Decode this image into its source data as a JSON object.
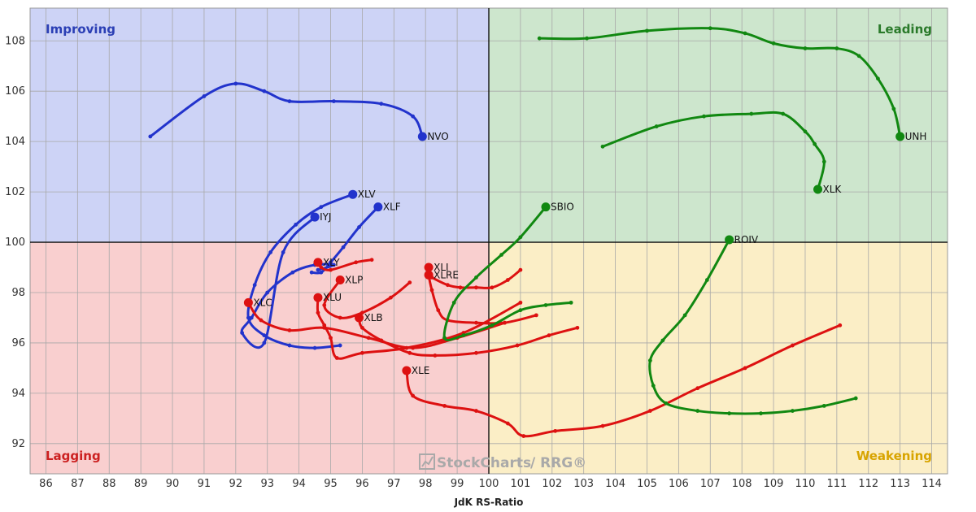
{
  "chart_data": {
    "type": "line",
    "xlabel": "JdK RS-Ratio",
    "ylabel": "",
    "xlim": [
      85.5,
      114.5
    ],
    "ylim": [
      90.8,
      109.3
    ],
    "center": [
      100,
      100
    ],
    "xticks": [
      86,
      87,
      88,
      89,
      90,
      91,
      92,
      93,
      94,
      95,
      96,
      97,
      98,
      99,
      100,
      101,
      102,
      103,
      104,
      105,
      106,
      107,
      108,
      109,
      110,
      111,
      112,
      113,
      114
    ],
    "yticks": [
      92,
      94,
      96,
      98,
      100,
      102,
      104,
      106,
      108
    ],
    "grid": true,
    "quadrants": {
      "improving": {
        "label": "Improving",
        "fill": "#cdd3f6",
        "text_color": "#2b3fb5"
      },
      "leading": {
        "label": "Leading",
        "fill": "#cde6cd",
        "text_color": "#2a7a2a"
      },
      "lagging": {
        "label": "Lagging",
        "fill": "#f9cfcf",
        "text_color": "#cc2020"
      },
      "weakening": {
        "label": "Weakening",
        "fill": "#fbeec6",
        "text_color": "#d8a400"
      }
    },
    "watermark": {
      "brand": "StockCharts",
      "product": "/ RRG®"
    },
    "series": [
      {
        "name": "NVO",
        "color": "#2233cc",
        "points": [
          [
            89.3,
            104.2
          ],
          [
            91.0,
            105.8
          ],
          [
            92.0,
            106.3
          ],
          [
            92.9,
            106.0
          ],
          [
            93.7,
            105.6
          ],
          [
            95.1,
            105.6
          ],
          [
            96.6,
            105.5
          ],
          [
            97.6,
            105.0
          ],
          [
            97.9,
            104.2
          ]
        ]
      },
      {
        "name": "XLV",
        "color": "#2233cc",
        "points": [
          [
            95.3,
            95.9
          ],
          [
            94.5,
            95.8
          ],
          [
            93.7,
            95.9
          ],
          [
            92.9,
            96.3
          ],
          [
            92.4,
            97.0
          ],
          [
            92.6,
            98.3
          ],
          [
            93.1,
            99.6
          ],
          [
            93.9,
            100.7
          ],
          [
            94.7,
            101.4
          ],
          [
            95.7,
            101.9
          ]
        ]
      },
      {
        "name": "XLF",
        "color": "#2233cc",
        "points": [
          [
            94.4,
            98.8
          ],
          [
            94.7,
            98.8
          ],
          [
            95.0,
            99.2
          ],
          [
            95.4,
            99.8
          ],
          [
            95.9,
            100.6
          ],
          [
            96.5,
            101.4
          ]
        ]
      },
      {
        "name": "IYJ",
        "color": "#2233cc",
        "points": [
          [
            94.6,
            98.9
          ],
          [
            95.1,
            99.1
          ],
          [
            94.5,
            99.1
          ],
          [
            93.8,
            98.8
          ],
          [
            93.0,
            98.0
          ],
          [
            92.5,
            97.0
          ],
          [
            92.2,
            96.4
          ],
          [
            92.9,
            96.0
          ],
          [
            93.5,
            99.6
          ],
          [
            94.5,
            101.0
          ]
        ]
      },
      {
        "name": "XLY",
        "color": "#dd1111",
        "points": [
          [
            96.3,
            99.3
          ],
          [
            95.8,
            99.2
          ],
          [
            95.0,
            98.9
          ],
          [
            94.7,
            99.0
          ],
          [
            94.6,
            99.2
          ]
        ]
      },
      {
        "name": "XLP",
        "color": "#dd1111",
        "points": [
          [
            97.5,
            98.4
          ],
          [
            96.9,
            97.8
          ],
          [
            96.0,
            97.2
          ],
          [
            95.3,
            97.0
          ],
          [
            94.8,
            97.5
          ],
          [
            95.3,
            98.5
          ]
        ]
      },
      {
        "name": "XLU",
        "color": "#dd1111",
        "points": [
          [
            101.0,
            97.6
          ],
          [
            99.2,
            96.4
          ],
          [
            97.4,
            95.8
          ],
          [
            96.0,
            95.6
          ],
          [
            95.2,
            95.4
          ],
          [
            95.0,
            96.2
          ],
          [
            94.8,
            96.7
          ],
          [
            94.6,
            97.2
          ],
          [
            94.6,
            97.8
          ]
        ]
      },
      {
        "name": "XLC",
        "color": "#dd1111",
        "points": [
          [
            100.5,
            96.8
          ],
          [
            99.0,
            96.2
          ],
          [
            97.6,
            95.8
          ],
          [
            96.2,
            96.2
          ],
          [
            94.8,
            96.6
          ],
          [
            93.7,
            96.5
          ],
          [
            92.8,
            96.9
          ],
          [
            92.4,
            97.6
          ]
        ]
      },
      {
        "name": "XLB",
        "color": "#dd1111",
        "points": [
          [
            102.8,
            96.6
          ],
          [
            101.9,
            96.3
          ],
          [
            100.9,
            95.9
          ],
          [
            99.6,
            95.6
          ],
          [
            98.3,
            95.5
          ],
          [
            97.5,
            95.6
          ],
          [
            96.6,
            96.1
          ],
          [
            96.0,
            96.6
          ],
          [
            95.9,
            97.0
          ]
        ]
      },
      {
        "name": "XLI",
        "color": "#dd1111",
        "points": [
          [
            101.5,
            97.1
          ],
          [
            100.5,
            96.8
          ],
          [
            99.6,
            96.8
          ],
          [
            98.7,
            96.9
          ],
          [
            98.4,
            97.3
          ],
          [
            98.2,
            98.1
          ],
          [
            98.1,
            98.7
          ],
          [
            98.1,
            99.0
          ]
        ]
      },
      {
        "name": "XLRE",
        "color": "#dd1111",
        "points": [
          [
            101.0,
            98.9
          ],
          [
            100.6,
            98.5
          ],
          [
            100.1,
            98.2
          ],
          [
            99.6,
            98.2
          ],
          [
            99.1,
            98.2
          ],
          [
            98.7,
            98.3
          ],
          [
            98.2,
            98.6
          ],
          [
            98.1,
            98.7
          ]
        ]
      },
      {
        "name": "XLE",
        "color": "#dd1111",
        "points": [
          [
            111.1,
            96.7
          ],
          [
            109.6,
            95.9
          ],
          [
            108.1,
            95.0
          ],
          [
            106.6,
            94.2
          ],
          [
            105.1,
            93.3
          ],
          [
            103.6,
            92.7
          ],
          [
            102.1,
            92.5
          ],
          [
            101.1,
            92.3
          ],
          [
            100.6,
            92.8
          ],
          [
            99.6,
            93.3
          ],
          [
            98.6,
            93.5
          ],
          [
            97.6,
            93.9
          ],
          [
            97.4,
            94.9
          ]
        ]
      },
      {
        "name": "SBIO",
        "color": "#118811",
        "points": [
          [
            102.6,
            97.6
          ],
          [
            101.8,
            97.5
          ],
          [
            101.0,
            97.3
          ],
          [
            100.1,
            96.7
          ],
          [
            99.2,
            96.3
          ],
          [
            98.6,
            96.2
          ],
          [
            98.9,
            97.6
          ],
          [
            99.6,
            98.6
          ],
          [
            100.4,
            99.5
          ],
          [
            101.0,
            100.2
          ],
          [
            101.8,
            101.4
          ]
        ]
      },
      {
        "name": "ROIV",
        "color": "#118811",
        "points": [
          [
            111.6,
            93.8
          ],
          [
            110.6,
            93.5
          ],
          [
            109.6,
            93.3
          ],
          [
            108.6,
            93.2
          ],
          [
            107.6,
            93.2
          ],
          [
            106.6,
            93.3
          ],
          [
            105.6,
            93.6
          ],
          [
            105.2,
            94.3
          ],
          [
            105.1,
            95.3
          ],
          [
            105.5,
            96.1
          ],
          [
            106.2,
            97.1
          ],
          [
            106.9,
            98.5
          ],
          [
            107.6,
            100.1
          ]
        ]
      },
      {
        "name": "XLK",
        "color": "#118811",
        "points": [
          [
            103.6,
            103.8
          ],
          [
            105.3,
            104.6
          ],
          [
            106.8,
            105.0
          ],
          [
            108.3,
            105.1
          ],
          [
            109.3,
            105.1
          ],
          [
            110.0,
            104.4
          ],
          [
            110.3,
            103.9
          ],
          [
            110.6,
            103.2
          ],
          [
            110.4,
            102.1
          ]
        ]
      },
      {
        "name": "UNH",
        "color": "#118811",
        "points": [
          [
            101.6,
            108.1
          ],
          [
            103.1,
            108.1
          ],
          [
            105.0,
            108.4
          ],
          [
            107.0,
            108.5
          ],
          [
            108.1,
            108.3
          ],
          [
            109.0,
            107.9
          ],
          [
            110.0,
            107.7
          ],
          [
            111.0,
            107.7
          ],
          [
            111.7,
            107.4
          ],
          [
            112.3,
            106.5
          ],
          [
            112.8,
            105.3
          ],
          [
            113.0,
            104.2
          ]
        ]
      }
    ]
  }
}
